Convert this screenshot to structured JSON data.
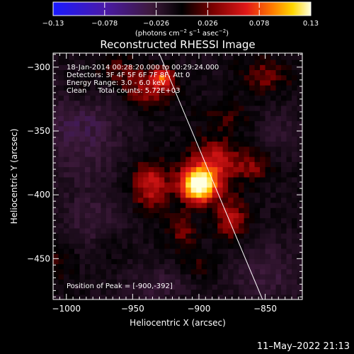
{
  "chart_data": {
    "type": "heatmap",
    "title": "Reconstructed RHESSI Image",
    "xlabel": "Heliocentric X (arcsec)",
    "ylabel": "Heliocentric Y (arcsec)",
    "xlim": [
      -1010,
      -822
    ],
    "ylim": [
      -482,
      -289
    ],
    "x_ticks": [
      -1000,
      -950,
      -900,
      -850
    ],
    "y_ticks": [
      -300,
      -350,
      -400,
      -450
    ],
    "x_tick_labels": [
      "−1000",
      "−950",
      "−900",
      "−850"
    ],
    "y_tick_labels": [
      "−300",
      "−350",
      "−400",
      "−450"
    ],
    "colorbar": {
      "range": [
        -0.13,
        0.13
      ],
      "tick_values": [
        -0.13,
        -0.078,
        -0.026,
        0.026,
        0.078,
        0.13
      ],
      "tick_labels": [
        "−0.13",
        "−0.078",
        "−0.026",
        "0.026",
        "0.078",
        "0.13"
      ],
      "units_text": "(photons cm",
      "units_exp1": "−2",
      "units_mid": " s",
      "units_exp2": "−1",
      "units_end": " asec",
      "units_exp3": "−2",
      "units_close": ")"
    },
    "annotations": [
      "18-Jan-2014 00:28:20.000 to 00:29:24.000",
      "Detectors: 3F 4F 5F 6F 7F 8F, Att 0",
      "Energy Range: 3.0 - 6.0 keV",
      "Clean     Total counts: 5.72E+03"
    ],
    "peak_label": "Position of Peak = [-900,-392]",
    "peak": {
      "x": -900,
      "y": -392,
      "value": 0.13
    },
    "limb_line": {
      "x": [
        -930,
        -852
      ],
      "y": [
        -289,
        -482
      ]
    },
    "blobs": [
      {
        "x": -900,
        "y": -392,
        "sx": 9,
        "sy": 9,
        "v": 0.16
      },
      {
        "x": -888,
        "y": -373,
        "sx": 14,
        "sy": 12,
        "v": 0.05
      },
      {
        "x": -858,
        "y": -378,
        "sx": 10,
        "sy": 9,
        "v": 0.03
      },
      {
        "x": -936,
        "y": -392,
        "sx": 10,
        "sy": 14,
        "v": 0.055
      },
      {
        "x": -938,
        "y": -318,
        "sx": 14,
        "sy": 10,
        "v": 0.04
      },
      {
        "x": -928,
        "y": -308,
        "sx": 6,
        "sy": 5,
        "v": 0.06
      },
      {
        "x": -960,
        "y": -302,
        "sx": 12,
        "sy": 8,
        "v": 0.025
      },
      {
        "x": -990,
        "y": -315,
        "sx": 10,
        "sy": 10,
        "v": 0.02
      },
      {
        "x": -850,
        "y": -306,
        "sx": 14,
        "sy": 10,
        "v": 0.03
      },
      {
        "x": -880,
        "y": -338,
        "sx": 14,
        "sy": 8,
        "v": 0.02
      },
      {
        "x": -913,
        "y": -428,
        "sx": 8,
        "sy": 10,
        "v": 0.03
      },
      {
        "x": -876,
        "y": -418,
        "sx": 9,
        "sy": 12,
        "v": 0.045
      },
      {
        "x": -900,
        "y": -454,
        "sx": 10,
        "sy": 8,
        "v": 0.02
      },
      {
        "x": -1005,
        "y": -452,
        "sx": 8,
        "sy": 10,
        "v": 0.02
      },
      {
        "x": -965,
        "y": -440,
        "sx": 8,
        "sy": 8,
        "v": 0.012
      },
      {
        "x": -990,
        "y": -350,
        "sx": 22,
        "sy": 28,
        "v": -0.03
      },
      {
        "x": -980,
        "y": -420,
        "sx": 16,
        "sy": 16,
        "v": -0.02
      },
      {
        "x": -850,
        "y": -460,
        "sx": 18,
        "sy": 16,
        "v": -0.025
      },
      {
        "x": -930,
        "y": -470,
        "sx": 18,
        "sy": 10,
        "v": -0.02
      },
      {
        "x": -840,
        "y": -350,
        "sx": 12,
        "sy": 14,
        "v": -0.015
      }
    ]
  },
  "footer": {
    "datetime": "11–May–2022 21:13"
  },
  "colors": {
    "background": "#000000",
    "text": "#ffffff",
    "limb": "#ffffff"
  }
}
